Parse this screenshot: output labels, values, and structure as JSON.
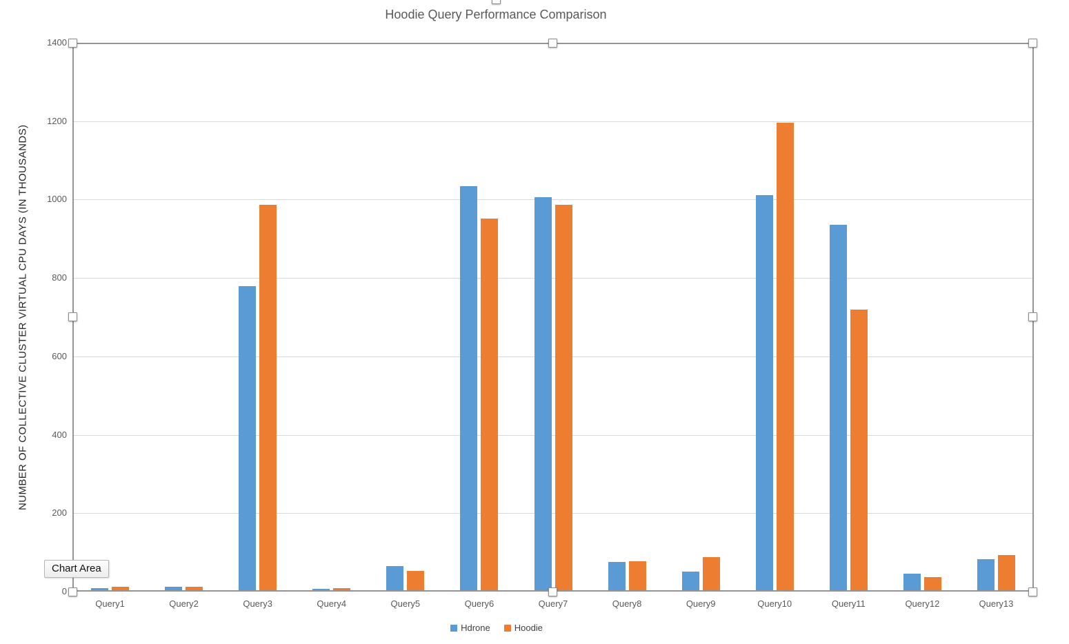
{
  "tooltip": {
    "label": "Chart Area"
  },
  "chart_data": {
    "type": "bar",
    "title": "Hoodie Query Performance Comparison",
    "xlabel": "",
    "ylabel": "NUMBER OF COLLECTIVE CLUSTER VIRTUAL CPU DAYS (IN THOUSANDS)",
    "ylim": [
      0,
      1400
    ],
    "yticks": [
      0,
      200,
      400,
      600,
      800,
      1000,
      1200,
      1400
    ],
    "grid": true,
    "legend_position": "bottom",
    "categories": [
      "Query1",
      "Query2",
      "Query3",
      "Query4",
      "Query5",
      "Query6",
      "Query7",
      "Query8",
      "Query9",
      "Query10",
      "Query11",
      "Query12",
      "Query13"
    ],
    "series": [
      {
        "name": "Hdrone",
        "color": "#5B9BD5",
        "values": [
          5,
          8,
          775,
          4,
          62,
          1030,
          1003,
          73,
          48,
          1007,
          933,
          42,
          80
        ]
      },
      {
        "name": "Hoodie",
        "color": "#ED7D31",
        "values": [
          8,
          8,
          984,
          5,
          50,
          948,
          983,
          74,
          85,
          1192,
          716,
          33,
          89
        ]
      }
    ]
  },
  "theme": {
    "title_color": "#595959",
    "axis_text_color": "#595959",
    "axis_title_color": "#262626",
    "gridline_color": "#D9D9D9",
    "axis_line_color": "#949494",
    "legend_text_color": "#404040"
  }
}
